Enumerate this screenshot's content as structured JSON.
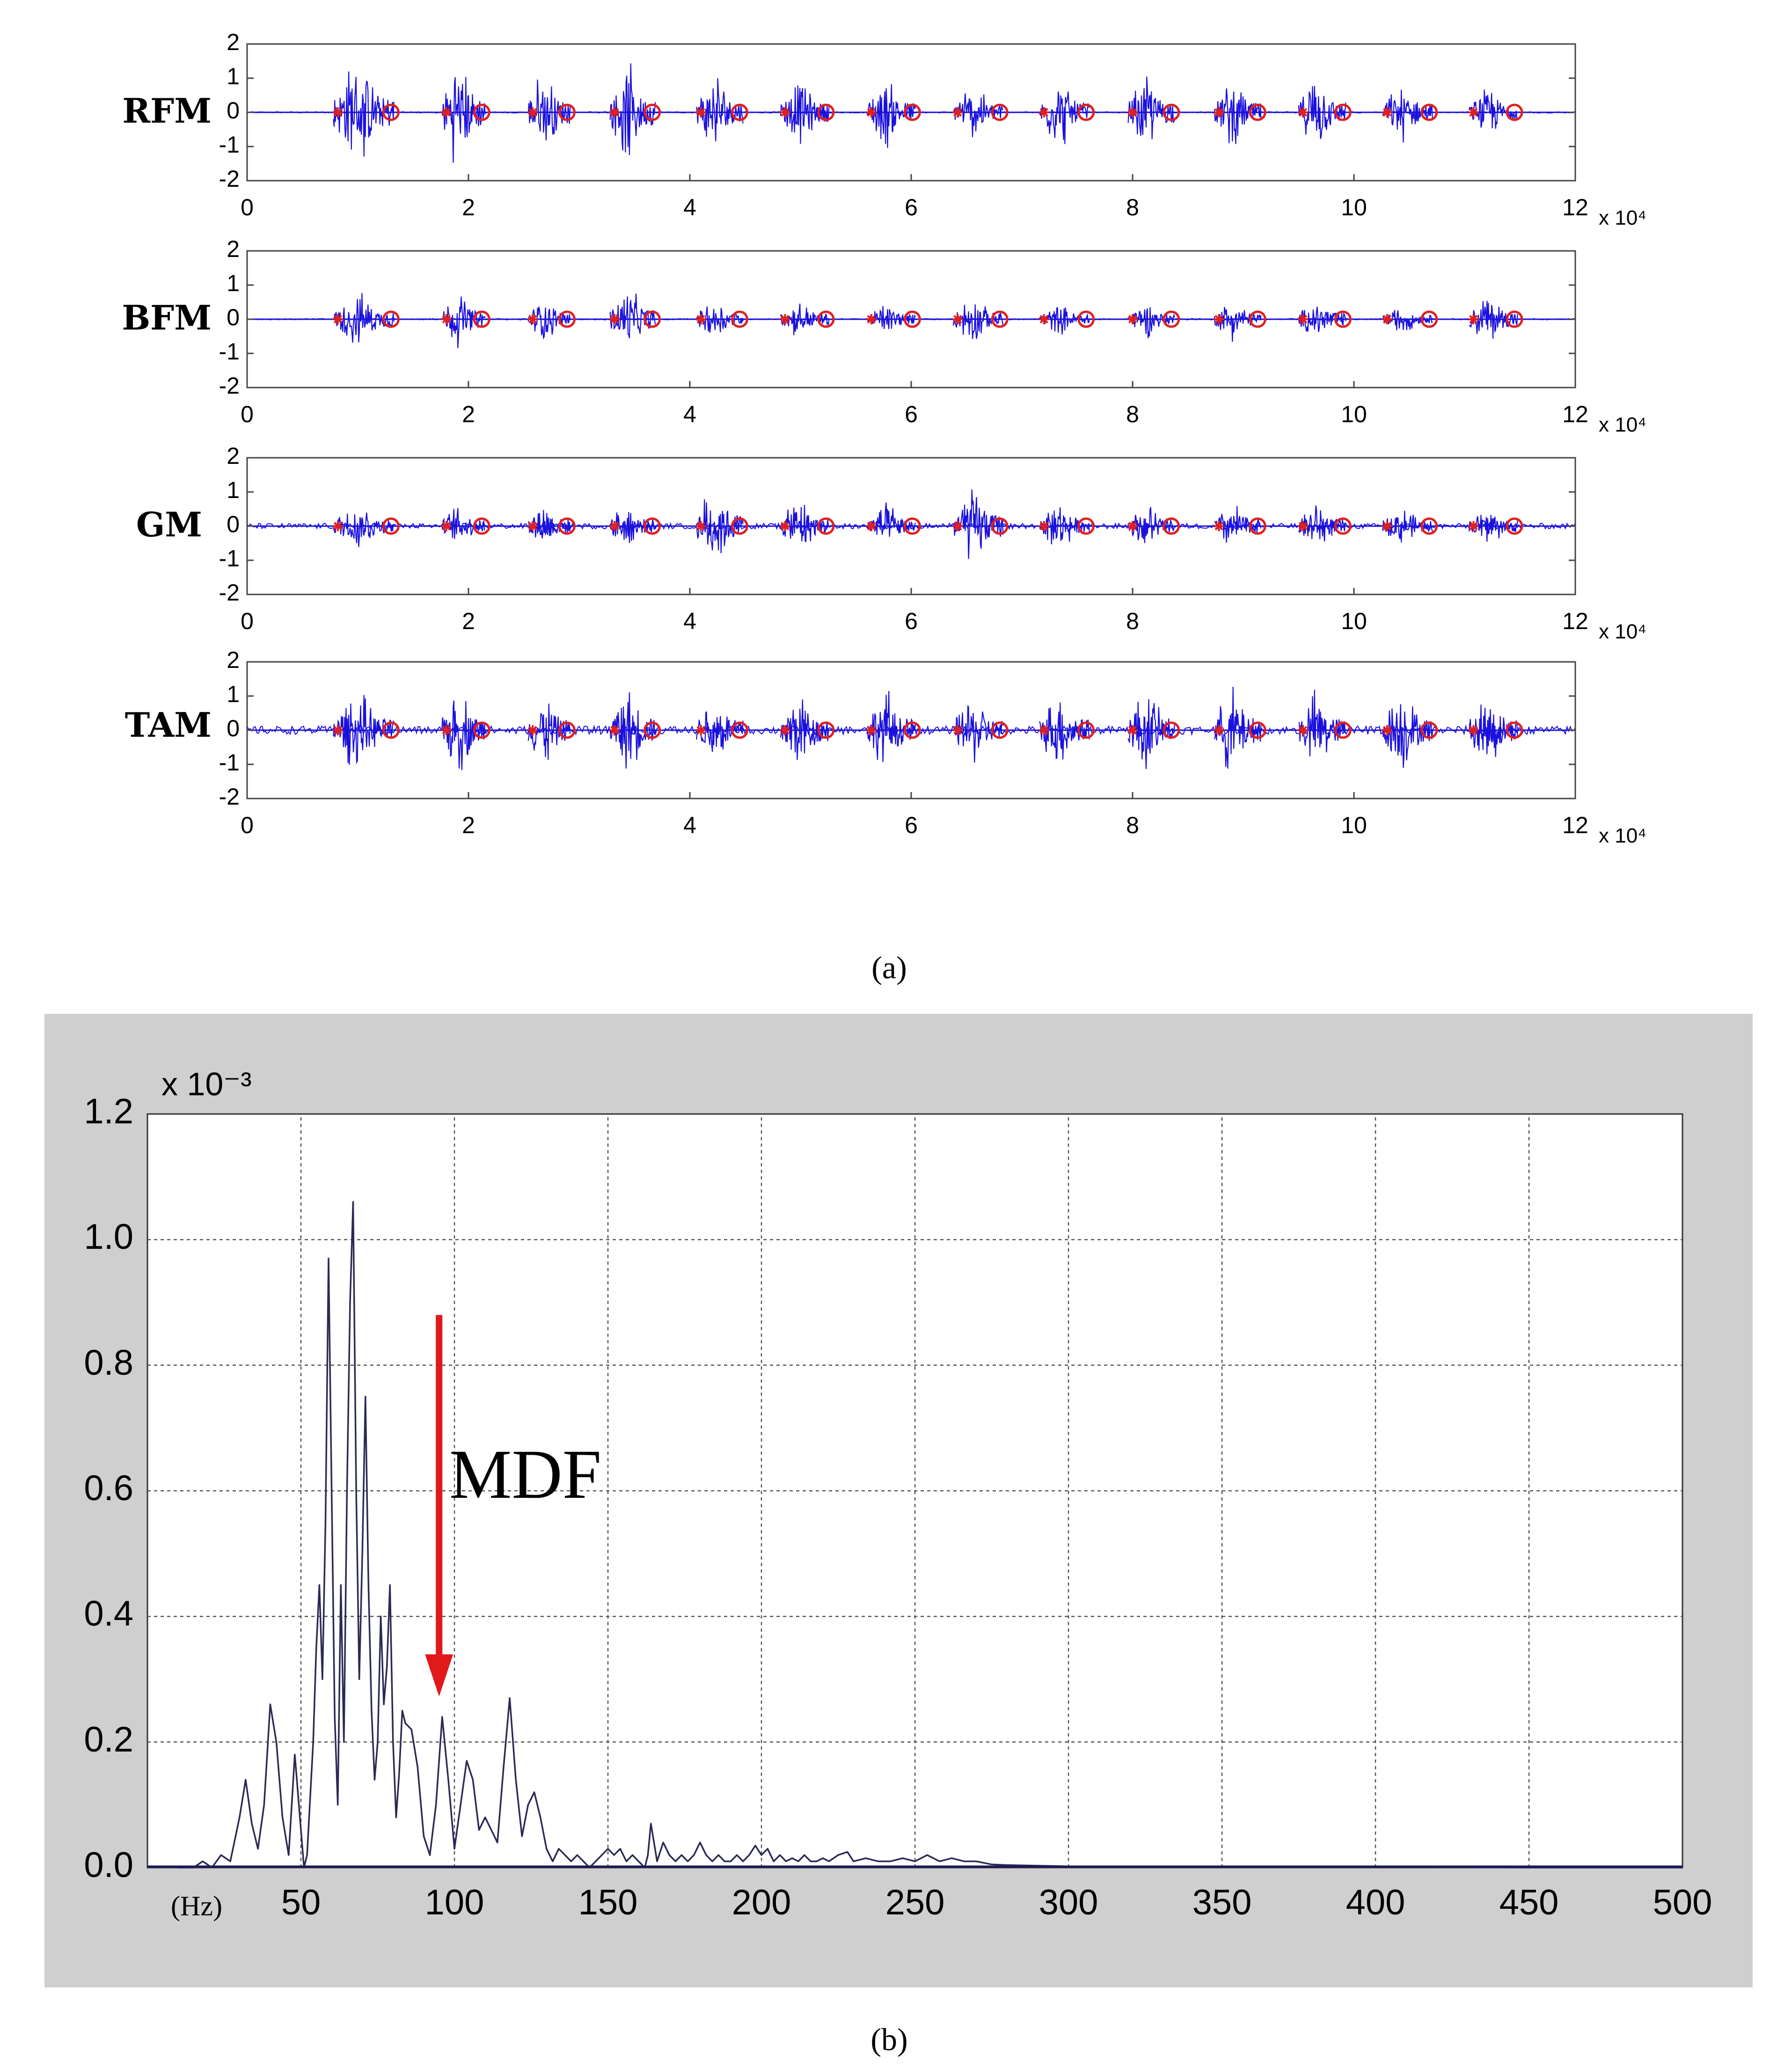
{
  "chart_data": [
    {
      "type": "line",
      "panel": "a",
      "caption": "(a)",
      "x_multiplier": "x 10⁴",
      "xticks": [
        "0",
        "2",
        "4",
        "6",
        "8",
        "10",
        "12"
      ],
      "yticks": [
        "2",
        "1",
        "0",
        "-1",
        "-2"
      ],
      "xlim": [
        0,
        120000
      ],
      "ylim": [
        -2,
        2
      ],
      "colors": {
        "signal": "#1a10dd",
        "marker": "#e02020",
        "axis": "#444444"
      },
      "markers": {
        "onset": "*",
        "offset": "o"
      },
      "onsets": [
        8200,
        18000,
        25800,
        33200,
        41000,
        48600,
        56400,
        64200,
        72000,
        80000,
        87800,
        95400,
        103000,
        110800
      ],
      "offsets": [
        13000,
        21200,
        28900,
        36600,
        44500,
        52300,
        60100,
        68000,
        75800,
        83500,
        91300,
        99000,
        106800,
        114500
      ],
      "series": [
        {
          "name": "RFM",
          "burst_amplitudes": [
            1.75,
            1.8,
            1.4,
            1.55,
            1.3,
            1.1,
            1.2,
            0.95,
            1.15,
            1.25,
            1.1,
            1.2,
            0.95,
            0.8
          ],
          "baseline_noise": 0.02
        },
        {
          "name": "BFM",
          "burst_amplitudes": [
            0.9,
            0.95,
            0.75,
            1.1,
            0.7,
            0.6,
            0.55,
            0.8,
            0.5,
            0.6,
            0.7,
            0.75,
            0.45,
            0.9
          ],
          "baseline_noise": 0.02
        },
        {
          "name": "GM",
          "burst_amplitudes": [
            0.85,
            0.7,
            0.85,
            0.8,
            1.4,
            0.9,
            0.75,
            1.3,
            0.8,
            0.75,
            0.8,
            0.85,
            0.65,
            0.7
          ],
          "baseline_noise": 0.08
        },
        {
          "name": "TAM",
          "burst_amplitudes": [
            1.3,
            1.45,
            1.25,
            1.4,
            1.2,
            1.4,
            1.35,
            1.2,
            1.3,
            1.45,
            1.5,
            1.35,
            1.4,
            1.3
          ],
          "baseline_noise": 0.12
        }
      ]
    },
    {
      "type": "line",
      "panel": "b",
      "caption": "(b)",
      "y_multiplier": "x 10⁻³",
      "xlabel": "(Hz)",
      "xticks": [
        "50",
        "100",
        "150",
        "200",
        "250",
        "300",
        "350",
        "400",
        "450",
        "500"
      ],
      "yticks": [
        "0.0",
        "0.2",
        "0.4",
        "0.6",
        "0.8",
        "1.0",
        "1.2"
      ],
      "xlim": [
        0,
        500
      ],
      "ylim": [
        0,
        1.2
      ],
      "grid": true,
      "colors": {
        "spectrum": "#2a2a55",
        "arrow": "#e0191a",
        "background": "#cfcfcf"
      },
      "annotation": {
        "text": "MDF",
        "x": 95,
        "arrow_from_y": 0.88,
        "arrow_to_y": 0.28
      },
      "spectrum": [
        [
          10,
          0
        ],
        [
          15,
          0
        ],
        [
          18,
          0.01
        ],
        [
          21,
          0
        ],
        [
          24,
          0.02
        ],
        [
          27,
          0.01
        ],
        [
          30,
          0.08
        ],
        [
          32,
          0.14
        ],
        [
          34,
          0.07
        ],
        [
          36,
          0.03
        ],
        [
          38,
          0.1
        ],
        [
          40,
          0.26
        ],
        [
          42,
          0.2
        ],
        [
          44,
          0.08
        ],
        [
          46,
          0.02
        ],
        [
          48,
          0.18
        ],
        [
          50,
          0.06
        ],
        [
          51,
          0
        ],
        [
          52,
          0.02
        ],
        [
          54,
          0.2
        ],
        [
          55,
          0.35
        ],
        [
          56,
          0.45
        ],
        [
          57,
          0.3
        ],
        [
          58,
          0.55
        ],
        [
          59,
          0.97
        ],
        [
          60,
          0.6
        ],
        [
          61,
          0.24
        ],
        [
          62,
          0.1
        ],
        [
          63,
          0.45
        ],
        [
          64,
          0.2
        ],
        [
          65,
          0.6
        ],
        [
          66,
          0.9
        ],
        [
          67,
          1.06
        ],
        [
          68,
          0.6
        ],
        [
          69,
          0.3
        ],
        [
          70,
          0.5
        ],
        [
          71,
          0.75
        ],
        [
          72,
          0.45
        ],
        [
          73,
          0.25
        ],
        [
          74,
          0.14
        ],
        [
          75,
          0.2
        ],
        [
          76,
          0.4
        ],
        [
          77,
          0.26
        ],
        [
          78,
          0.32
        ],
        [
          79,
          0.45
        ],
        [
          80,
          0.2
        ],
        [
          81,
          0.08
        ],
        [
          82,
          0.15
        ],
        [
          83,
          0.25
        ],
        [
          84,
          0.23
        ],
        [
          86,
          0.22
        ],
        [
          88,
          0.16
        ],
        [
          90,
          0.05
        ],
        [
          92,
          0.02
        ],
        [
          94,
          0.1
        ],
        [
          96,
          0.24
        ],
        [
          98,
          0.14
        ],
        [
          100,
          0.03
        ],
        [
          102,
          0.1
        ],
        [
          104,
          0.17
        ],
        [
          106,
          0.14
        ],
        [
          108,
          0.06
        ],
        [
          110,
          0.08
        ],
        [
          112,
          0.06
        ],
        [
          114,
          0.04
        ],
        [
          116,
          0.16
        ],
        [
          118,
          0.27
        ],
        [
          120,
          0.14
        ],
        [
          122,
          0.05
        ],
        [
          124,
          0.1
        ],
        [
          126,
          0.12
        ],
        [
          128,
          0.08
        ],
        [
          130,
          0.03
        ],
        [
          132,
          0.01
        ],
        [
          134,
          0.03
        ],
        [
          136,
          0.02
        ],
        [
          138,
          0.01
        ],
        [
          140,
          0.02
        ],
        [
          142,
          0.01
        ],
        [
          144,
          0
        ],
        [
          146,
          0.01
        ],
        [
          148,
          0.02
        ],
        [
          150,
          0.03
        ],
        [
          152,
          0.02
        ],
        [
          154,
          0.03
        ],
        [
          156,
          0.01
        ],
        [
          158,
          0.02
        ],
        [
          160,
          0.01
        ],
        [
          162,
          0
        ],
        [
          163,
          0.02
        ],
        [
          164,
          0.07
        ],
        [
          165,
          0.04
        ],
        [
          166,
          0.01
        ],
        [
          168,
          0.04
        ],
        [
          170,
          0.02
        ],
        [
          172,
          0.01
        ],
        [
          174,
          0.02
        ],
        [
          176,
          0.01
        ],
        [
          178,
          0.02
        ],
        [
          180,
          0.04
        ],
        [
          182,
          0.02
        ],
        [
          184,
          0.01
        ],
        [
          186,
          0.02
        ],
        [
          188,
          0.01
        ],
        [
          190,
          0.01
        ],
        [
          192,
          0.02
        ],
        [
          194,
          0.01
        ],
        [
          196,
          0.02
        ],
        [
          198,
          0.035
        ],
        [
          200,
          0.02
        ],
        [
          202,
          0.03
        ],
        [
          204,
          0.01
        ],
        [
          206,
          0.02
        ],
        [
          208,
          0.01
        ],
        [
          210,
          0.015
        ],
        [
          212,
          0.01
        ],
        [
          214,
          0.02
        ],
        [
          216,
          0.01
        ],
        [
          218,
          0.01
        ],
        [
          220,
          0.015
        ],
        [
          222,
          0.01
        ],
        [
          225,
          0.02
        ],
        [
          228,
          0.025
        ],
        [
          230,
          0.01
        ],
        [
          234,
          0.015
        ],
        [
          238,
          0.01
        ],
        [
          242,
          0.01
        ],
        [
          246,
          0.015
        ],
        [
          250,
          0.01
        ],
        [
          254,
          0.02
        ],
        [
          258,
          0.01
        ],
        [
          262,
          0.015
        ],
        [
          266,
          0.01
        ],
        [
          270,
          0.01
        ],
        [
          275,
          0.005
        ],
        [
          280,
          0.004
        ],
        [
          300,
          0.002
        ],
        [
          350,
          0.001
        ],
        [
          400,
          0.001
        ],
        [
          450,
          0
        ],
        [
          500,
          0
        ]
      ]
    }
  ]
}
